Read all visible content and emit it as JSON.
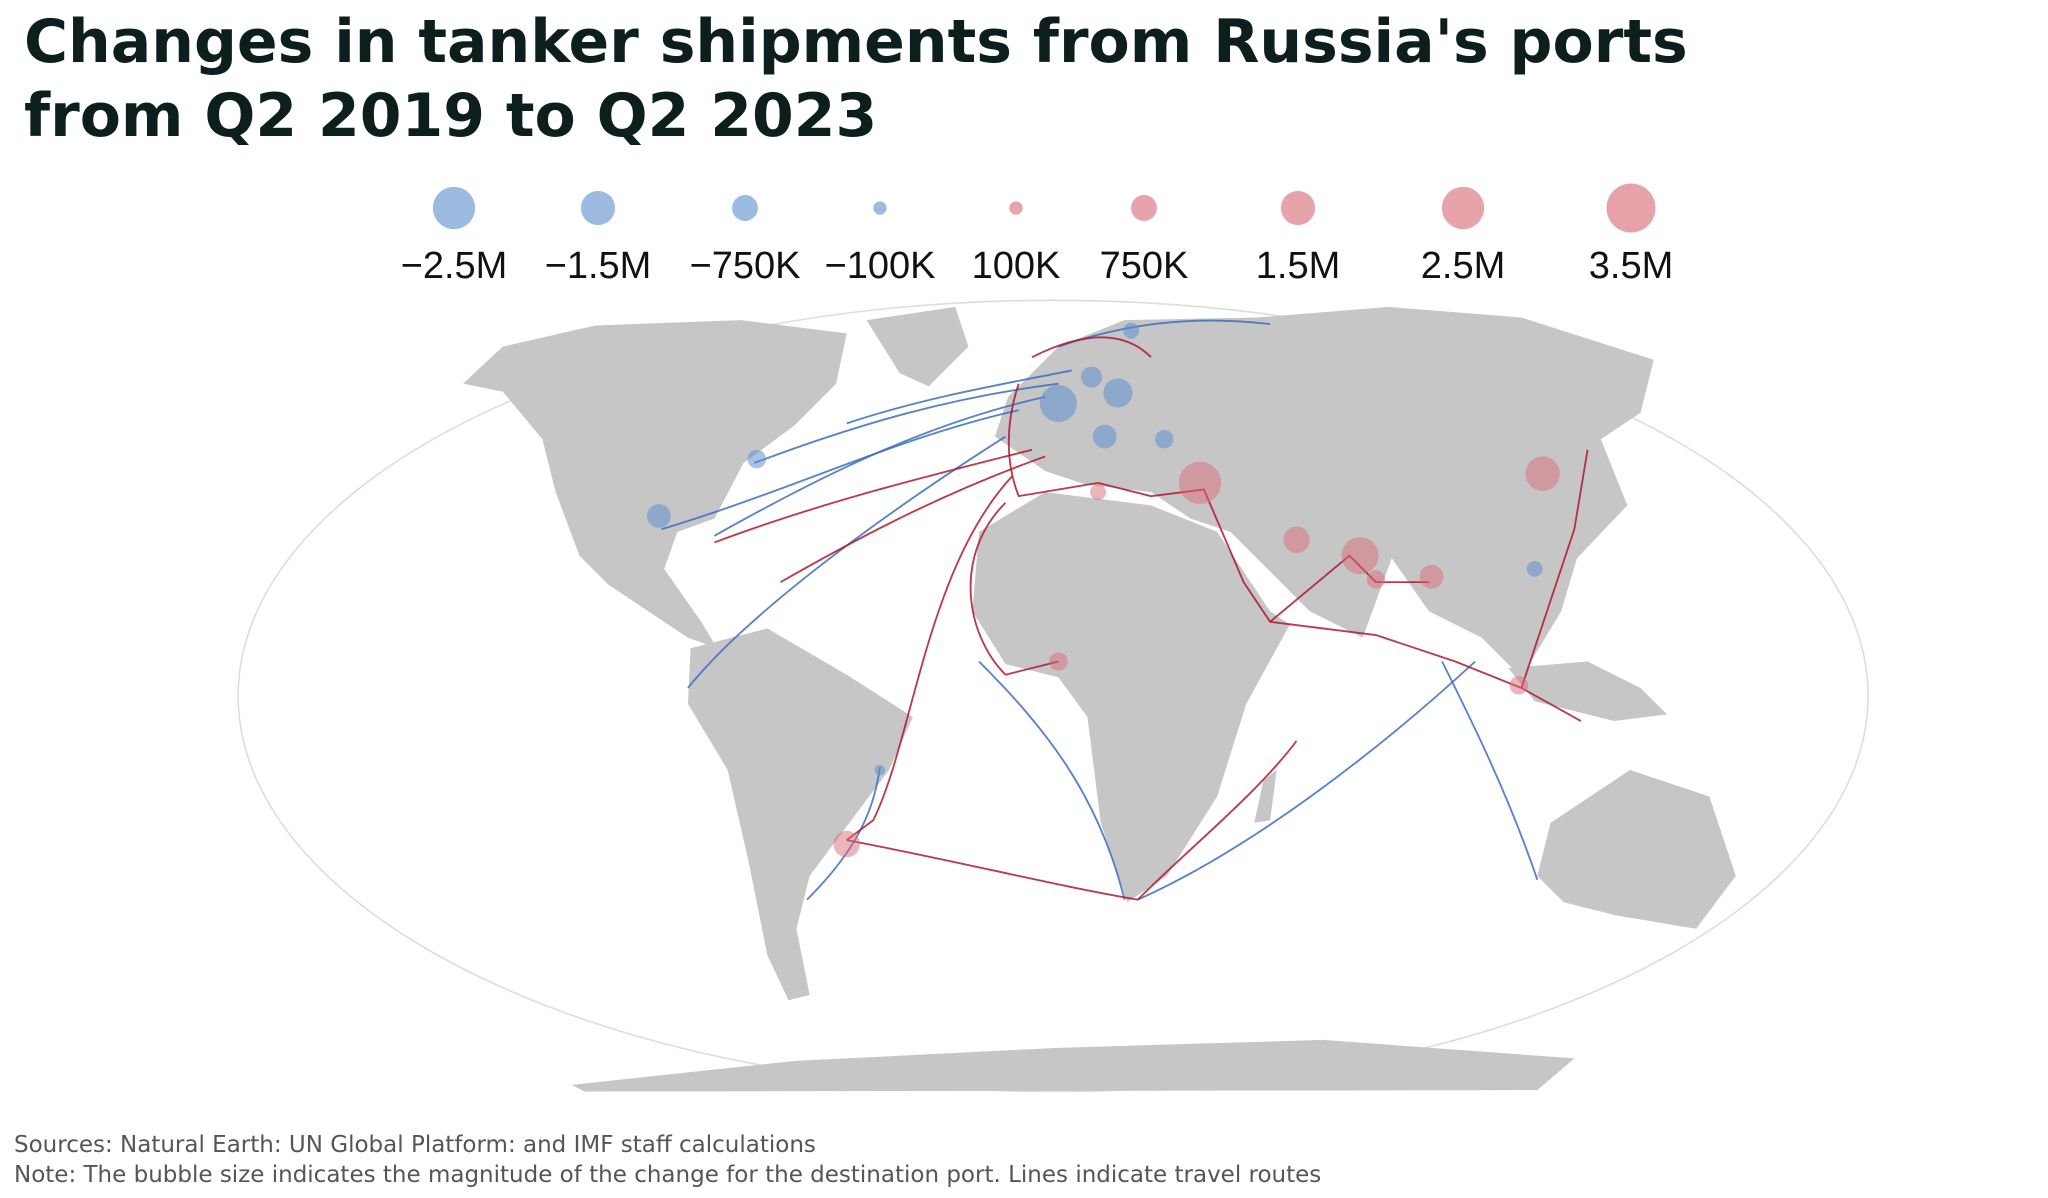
{
  "header": {
    "title_lines": [
      "Changes in tanker shipments from Russia's ports",
      "from Q2 2019 to Q2 2023"
    ]
  },
  "legend": [
    {
      "value": -2500000,
      "label": "−2.5M"
    },
    {
      "value": -1500000,
      "label": "−1.5M"
    },
    {
      "value": -750000,
      "label": "−750K"
    },
    {
      "value": -100000,
      "label": "−100K"
    },
    {
      "value": 100000,
      "label": "100K"
    },
    {
      "value": 750000,
      "label": "750K"
    },
    {
      "value": 1500000,
      "label": "1.5M"
    },
    {
      "value": 2500000,
      "label": "2.5M"
    },
    {
      "value": 3500000,
      "label": "3.5M"
    }
  ],
  "footer": {
    "sources": "Sources: Natural Earth: UN Global Platform: and IMF staff calculations",
    "note": "Note: The bubble size indicates the magnitude of the change for the destination port. Lines indicate travel routes"
  }
}
